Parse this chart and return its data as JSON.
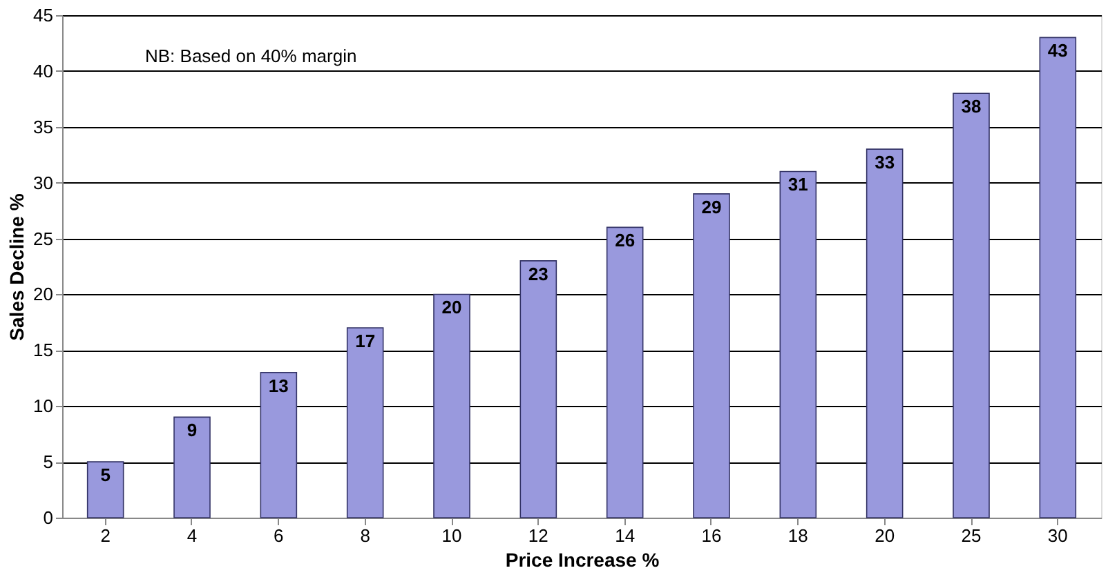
{
  "chart_data": {
    "type": "bar",
    "xlabel": "Price Increase %",
    "ylabel": "Sales Decline %",
    "categories": [
      "2",
      "4",
      "6",
      "8",
      "10",
      "12",
      "14",
      "16",
      "18",
      "20",
      "25",
      "30"
    ],
    "values": [
      5,
      9,
      13,
      17,
      20,
      23,
      26,
      29,
      31,
      33,
      38,
      43
    ],
    "color": "#9999dd",
    "ylim": [
      0,
      45
    ],
    "yticks": [
      0,
      5,
      10,
      15,
      20,
      25,
      30,
      35,
      40,
      45
    ],
    "grid": "y",
    "data_labels": true,
    "annotations": [
      "NB: Based on 40% margin"
    ]
  }
}
